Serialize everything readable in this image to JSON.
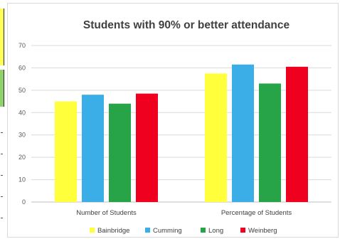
{
  "chart_data": {
    "type": "bar",
    "title": "Students with 90% or better attendance",
    "categories": [
      "Number of Students",
      "Percentage of Students"
    ],
    "series": [
      {
        "name": "Bainbridge",
        "color": "#ffff3b",
        "values": [
          45,
          57.5
        ]
      },
      {
        "name": "Cumming",
        "color": "#3baee8",
        "values": [
          48,
          61.5
        ]
      },
      {
        "name": "Long",
        "color": "#27a448",
        "values": [
          44,
          53
        ]
      },
      {
        "name": "Weinberg",
        "color": "#f0001f",
        "values": [
          48.5,
          60.5
        ]
      }
    ],
    "yticks": [
      "0",
      "10",
      "20",
      "30",
      "40",
      "50",
      "60",
      "70"
    ],
    "ylim": [
      0,
      70
    ],
    "grid": true,
    "legend": "bottom"
  }
}
